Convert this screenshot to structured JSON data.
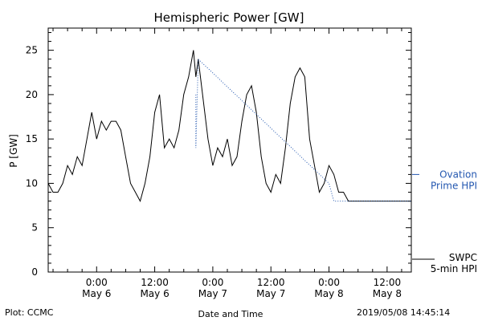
{
  "chart_data": {
    "type": "line",
    "title": "Hemispheric Power [GW]",
    "xlabel": "Date and Time",
    "ylabel": "P [GW]",
    "ylim": [
      0,
      27.5
    ],
    "yticks": [
      0,
      5,
      10,
      15,
      20,
      25
    ],
    "xlim": [
      "2019-05-05T14:00",
      "2019-05-08T17:00"
    ],
    "xtick_labels": [
      {
        "time": "0:00",
        "date": "May 6"
      },
      {
        "time": "12:00",
        "date": "May 6"
      },
      {
        "time": "0:00",
        "date": "May 7"
      },
      {
        "time": "12:00",
        "date": "May 7"
      },
      {
        "time": "0:00",
        "date": "May 8"
      },
      {
        "time": "12:00",
        "date": "May 8"
      }
    ],
    "series": [
      {
        "name": "SWPC 5-min HPI",
        "color": "#000000",
        "style": "solid",
        "x": [
          "2019-05-05T14:00",
          "2019-05-05T15:00",
          "2019-05-05T16:00",
          "2019-05-05T17:00",
          "2019-05-05T18:00",
          "2019-05-05T19:00",
          "2019-05-05T20:00",
          "2019-05-05T21:00",
          "2019-05-05T22:00",
          "2019-05-05T23:00",
          "2019-05-06T00:00",
          "2019-05-06T01:00",
          "2019-05-06T02:00",
          "2019-05-06T03:00",
          "2019-05-06T04:00",
          "2019-05-06T05:00",
          "2019-05-06T06:00",
          "2019-05-06T07:00",
          "2019-05-06T08:00",
          "2019-05-06T09:00",
          "2019-05-06T10:00",
          "2019-05-06T11:00",
          "2019-05-06T12:00",
          "2019-05-06T13:00",
          "2019-05-06T14:00",
          "2019-05-06T15:00",
          "2019-05-06T16:00",
          "2019-05-06T17:00",
          "2019-05-06T18:00",
          "2019-05-06T19:00",
          "2019-05-06T20:00",
          "2019-05-06T20:30",
          "2019-05-06T21:00",
          "2019-05-06T23:00",
          "2019-05-07T00:00",
          "2019-05-07T01:00",
          "2019-05-07T02:00",
          "2019-05-07T03:00",
          "2019-05-07T04:00",
          "2019-05-07T05:00",
          "2019-05-07T06:00",
          "2019-05-07T07:00",
          "2019-05-07T08:00",
          "2019-05-07T09:00",
          "2019-05-07T10:00",
          "2019-05-07T11:00",
          "2019-05-07T12:00",
          "2019-05-07T13:00",
          "2019-05-07T14:00",
          "2019-05-07T15:00",
          "2019-05-07T16:00",
          "2019-05-07T17:00",
          "2019-05-07T18:00",
          "2019-05-07T19:00",
          "2019-05-07T20:00",
          "2019-05-07T21:00",
          "2019-05-07T22:00",
          "2019-05-07T23:00",
          "2019-05-08T00:00",
          "2019-05-08T01:00",
          "2019-05-08T02:00",
          "2019-05-08T03:00",
          "2019-05-08T04:00",
          "2019-05-08T05:00",
          "2019-05-08T17:00"
        ],
        "y": [
          10,
          9,
          9,
          10,
          12,
          11,
          13,
          12,
          15,
          18,
          15,
          17,
          16,
          17,
          17,
          16,
          13,
          10,
          9,
          8,
          10,
          13,
          18,
          20,
          14,
          15,
          14,
          16,
          20,
          22,
          25,
          22,
          24,
          15,
          12,
          14,
          13,
          15,
          12,
          13,
          17,
          20,
          21,
          18,
          13,
          10,
          9,
          11,
          10,
          14,
          19,
          22,
          23,
          22,
          15,
          12,
          9,
          10,
          12,
          11,
          9,
          9,
          8,
          8,
          8
        ],
        "values_in_GW": true
      },
      {
        "name": "Ovation Prime HPI",
        "color": "#2458b0",
        "style": "dotted",
        "x": [
          "2019-05-06T20:30",
          "2019-05-06T20:30",
          "2019-05-06T21:00",
          "2019-05-08T00:00",
          "2019-05-08T01:00",
          "2019-05-08T17:00"
        ],
        "y": [
          20,
          14,
          24,
          10,
          8,
          8
        ]
      }
    ],
    "legend": [
      {
        "series": "Ovation Prime HPI",
        "label_line1": "Ovation",
        "label_line2": "Prime HPI",
        "color": "#2458b0",
        "position": "right-middle"
      },
      {
        "series": "SWPC 5-min HPI",
        "label_line1": "SWPC",
        "label_line2": "5-min HPI",
        "color": "#000000",
        "position": "right-bottom"
      }
    ],
    "grid": false
  },
  "footer": {
    "plot_credit": "Plot: CCMC",
    "timestamp": "2019/05/08 14:45:14"
  }
}
